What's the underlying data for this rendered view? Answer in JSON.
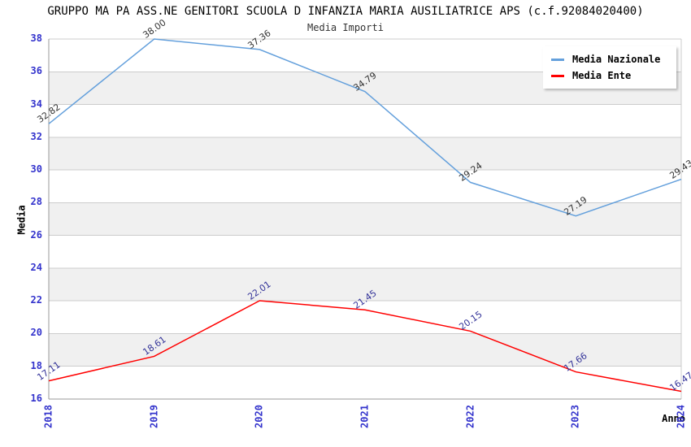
{
  "page": {
    "title": "GRUPPO MA PA ASS.NE GENITORI SCUOLA D INFANZIA MARIA AUSILIATRICE APS (c.f.92084020400)",
    "subtitle": "Media Importi"
  },
  "chart_data": {
    "type": "line",
    "title": "GRUPPO MA PA ASS.NE GENITORI SCUOLA D INFANZIA MARIA AUSILIATRICE APS (c.f.92084020400)",
    "subtitle": "Media Importi",
    "xlabel": "Anno",
    "ylabel": "Media",
    "x": [
      "2018",
      "2019",
      "2020",
      "2021",
      "2022",
      "2023",
      "2024"
    ],
    "series": [
      {
        "name": "Media Nazionale",
        "color": "#64a0dc",
        "values": [
          32.82,
          38.0,
          37.36,
          34.79,
          29.24,
          27.19,
          29.43
        ],
        "labels": [
          "32.82",
          "38.00",
          "37.36",
          "34.79",
          "29.24",
          "27.19",
          "29.43"
        ],
        "label_color": "#333333"
      },
      {
        "name": "Media Ente",
        "color": "#ff0000",
        "values": [
          17.11,
          18.61,
          22.01,
          21.45,
          20.15,
          17.66,
          16.47
        ],
        "labels": [
          "17.11",
          "18.61",
          "22.01",
          "21.45",
          "20.15",
          "17.66",
          "16.47"
        ],
        "label_color": "#333399"
      }
    ],
    "ylim": [
      16,
      38
    ],
    "yticks": [
      16,
      18,
      20,
      22,
      24,
      26,
      28,
      30,
      32,
      34,
      36,
      38
    ],
    "grid": true,
    "legend_position": "top-right",
    "colors": {
      "tick_label": "#3333cc",
      "grid_line": "#cccccc",
      "band_fill": "#f0f0f0",
      "axis_frame": "#999999",
      "title": "#000000"
    }
  }
}
